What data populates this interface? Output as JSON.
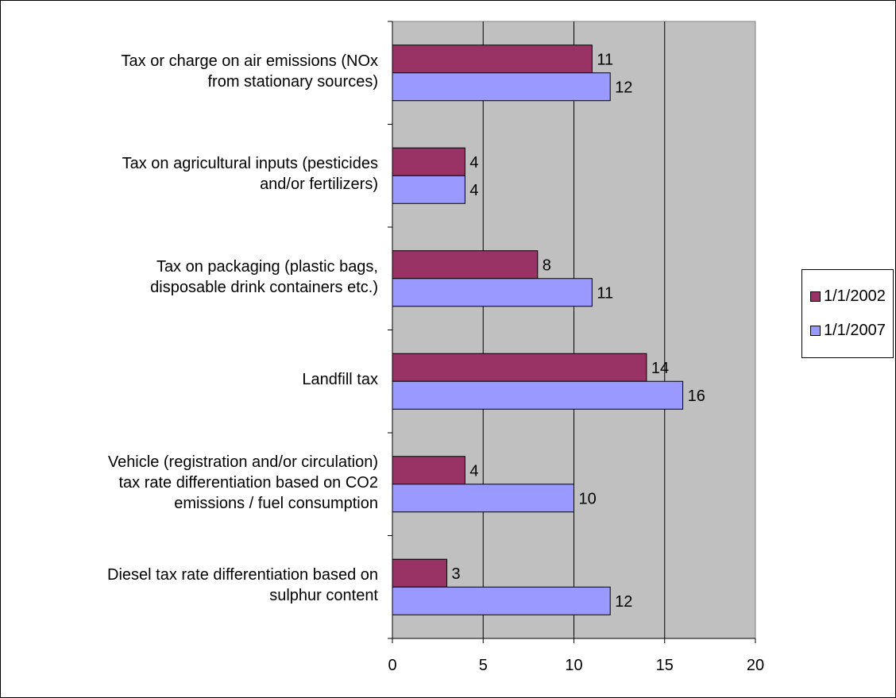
{
  "chart_data": {
    "type": "bar",
    "orientation": "horizontal",
    "categories": [
      "Tax or charge on air emissions (NOx\nfrom stationary sources)",
      "Tax on agricultural inputs (pesticides\nand/or fertilizers)",
      "Tax on packaging (plastic bags,\ndisposable drink containers etc.)",
      "Landfill tax",
      "Vehicle (registration and/or circulation)\ntax rate differentiation based on CO2\nemissions / fuel consumption",
      "Diesel tax rate differentiation based on\nsulphur content"
    ],
    "series": [
      {
        "name": "1/1/2002",
        "color": "#993366",
        "values": [
          11,
          4,
          8,
          14,
          4,
          3
        ]
      },
      {
        "name": "1/1/2007",
        "color": "#9999FF",
        "values": [
          12,
          4,
          11,
          16,
          10,
          12
        ]
      }
    ],
    "xlim": [
      0,
      20
    ],
    "xticks": [
      0,
      5,
      10,
      15,
      20
    ],
    "grid": "vertical",
    "plot_background": "#C0C0C0",
    "data_labels": true,
    "legend": "right",
    "title": "",
    "xlabel": "",
    "ylabel": ""
  }
}
